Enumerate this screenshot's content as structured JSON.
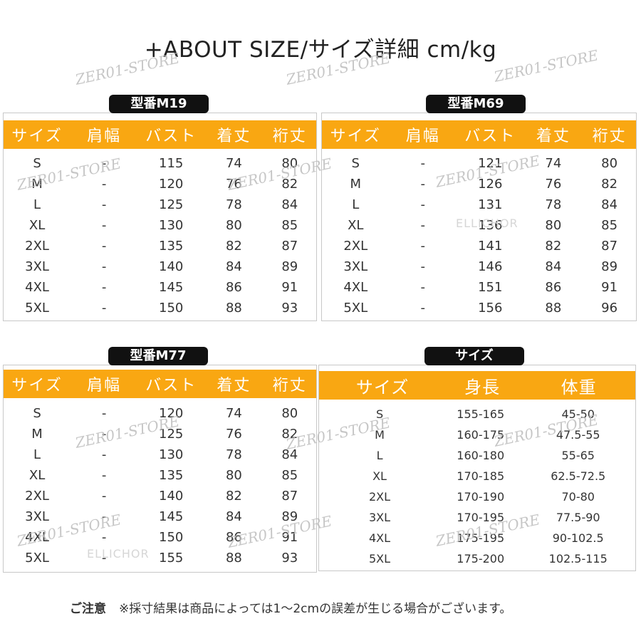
{
  "title": "+ABOUT SIZE/サイズ詳細 cm/kg",
  "header5": [
    "サイズ",
    "肩幅",
    "バスト",
    "着丈",
    "裄丈"
  ],
  "tables": [
    {
      "label": "型番M19",
      "rows": [
        [
          "S",
          "-",
          "115",
          "74",
          "80"
        ],
        [
          "M",
          "-",
          "120",
          "76",
          "82"
        ],
        [
          "L",
          "-",
          "125",
          "78",
          "84"
        ],
        [
          "XL",
          "-",
          "130",
          "80",
          "85"
        ],
        [
          "2XL",
          "-",
          "135",
          "82",
          "87"
        ],
        [
          "3XL",
          "-",
          "140",
          "84",
          "89"
        ],
        [
          "4XL",
          "-",
          "145",
          "86",
          "91"
        ],
        [
          "5XL",
          "-",
          "150",
          "88",
          "93"
        ]
      ]
    },
    {
      "label": "型番M69",
      "rows": [
        [
          "S",
          "-",
          "121",
          "74",
          "80"
        ],
        [
          "M",
          "-",
          "126",
          "76",
          "82"
        ],
        [
          "L",
          "-",
          "131",
          "78",
          "84"
        ],
        [
          "XL",
          "-",
          "136",
          "80",
          "85"
        ],
        [
          "2XL",
          "-",
          "141",
          "82",
          "87"
        ],
        [
          "3XL",
          "-",
          "146",
          "84",
          "89"
        ],
        [
          "4XL",
          "-",
          "151",
          "86",
          "91"
        ],
        [
          "5XL",
          "-",
          "156",
          "88",
          "96"
        ]
      ]
    },
    {
      "label": "型番M77",
      "rows": [
        [
          "S",
          "-",
          "120",
          "74",
          "80"
        ],
        [
          "M",
          "-",
          "125",
          "76",
          "82"
        ],
        [
          "L",
          "-",
          "130",
          "78",
          "84"
        ],
        [
          "XL",
          "-",
          "135",
          "80",
          "85"
        ],
        [
          "2XL",
          "-",
          "140",
          "82",
          "87"
        ],
        [
          "3XL",
          "-",
          "145",
          "84",
          "89"
        ],
        [
          "4XL",
          "-",
          "150",
          "86",
          "91"
        ],
        [
          "5XL",
          "-",
          "155",
          "88",
          "93"
        ]
      ]
    }
  ],
  "guide": {
    "label": "サイズ",
    "header": [
      "サイズ",
      "身長",
      "体重"
    ],
    "rows": [
      [
        "S",
        "155-165",
        "45-50"
      ],
      [
        "M",
        "160-175",
        "47.5-55"
      ],
      [
        "L",
        "160-180",
        "55-65"
      ],
      [
        "XL",
        "170-185",
        "62.5-72.5"
      ],
      [
        "2XL",
        "170-190",
        "70-80"
      ],
      [
        "3XL",
        "170-195",
        "77.5-90"
      ],
      [
        "4XL",
        "175-195",
        "90-102.5"
      ],
      [
        "5XL",
        "175-200",
        "102.5-115"
      ]
    ]
  },
  "note": {
    "heading": "ご注意",
    "text": "※採寸結果は商品によっては1～2cmの誤差が生じる場合がございます。"
  },
  "watermark": "ZER01-STORE",
  "logo_text": "ELLICHOR"
}
